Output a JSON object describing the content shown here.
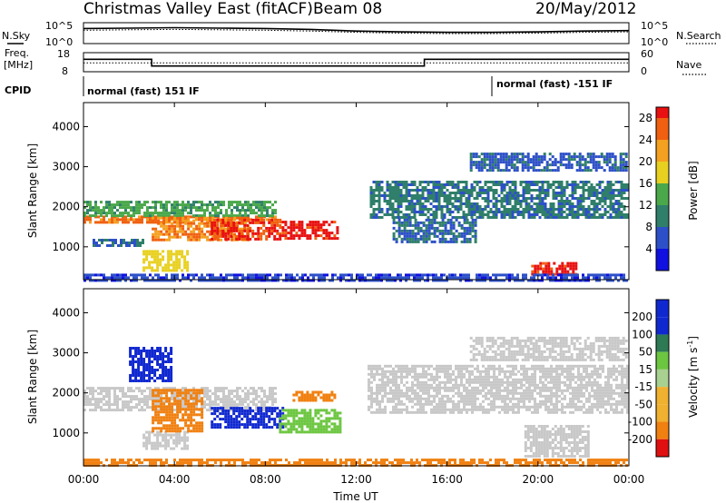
{
  "header": {
    "title": "Christmas Valley East (fitACF)",
    "beam": "Beam 08",
    "date": "20/May/2012"
  },
  "summary_labels": {
    "nsky": "N.Sky",
    "nsearch": "N.Search",
    "freq_line1": "Freq.",
    "freq_line2": "[MHz]",
    "nave": "Nave",
    "cpid": "CPID",
    "noise_ticks_left": [
      "10^5",
      "10^0"
    ],
    "noise_ticks_right": [
      "10^5",
      "10^0"
    ],
    "freq_ticks": [
      "18",
      "8"
    ],
    "nave_ticks": [
      "60",
      "0"
    ]
  },
  "cpid_segments": [
    {
      "label": "normal (fast) 151 IF",
      "start_hour": 0,
      "end_hour": 18
    },
    {
      "label": "normal (fast) -151 IF",
      "start_hour": 18,
      "end_hour": 24
    }
  ],
  "chart_data": [
    {
      "type": "line",
      "name": "summary-noise",
      "xlim": [
        0,
        24
      ],
      "series": [
        {
          "name": "N.Sky",
          "x": [
            0,
            2,
            4,
            6,
            8,
            10,
            12,
            14,
            16,
            18,
            20,
            22,
            24
          ],
          "y": [
            3.6,
            3.7,
            3.8,
            3.7,
            3.6,
            3.4,
            3.0,
            2.8,
            2.7,
            2.7,
            2.8,
            3.0,
            3.1
          ]
        },
        {
          "name": "N.Search",
          "x": [
            0,
            2,
            4,
            6,
            8,
            10,
            12,
            14,
            16,
            18,
            20,
            22,
            24
          ],
          "y": [
            3.2,
            3.3,
            3.4,
            3.3,
            3.2,
            3.0,
            2.7,
            2.5,
            2.4,
            2.4,
            2.5,
            2.7,
            2.8
          ]
        }
      ]
    },
    {
      "type": "line",
      "name": "summary-frequency",
      "xlim": [
        0,
        24
      ],
      "series": [
        {
          "name": "Freq.",
          "x": [
            0,
            3,
            3,
            15,
            15,
            24
          ],
          "y": [
            14.5,
            14.5,
            11.0,
            11.0,
            14.5,
            14.5
          ]
        },
        {
          "name": "Nave",
          "x": [
            0,
            3,
            15,
            24
          ],
          "y": [
            28,
            28,
            28,
            28
          ]
        }
      ]
    },
    {
      "type": "heatmap",
      "name": "power",
      "xlabel": "Time UT",
      "ylabel": "Slant Range [km]",
      "x_ticks": [
        "00:00",
        "04:00",
        "08:00",
        "12:00",
        "16:00",
        "20:00",
        "00:00"
      ],
      "y_ticks": [
        1000,
        2000,
        3000,
        4000
      ],
      "xlim": [
        0,
        24
      ],
      "ylim": [
        180,
        4600
      ],
      "colorbar": {
        "label": "Power [dB]",
        "ticks": [
          4,
          8,
          12,
          16,
          20,
          24,
          28
        ],
        "range": [
          0,
          30
        ]
      },
      "features": [
        {
          "t0": 0.0,
          "t1": 8.4,
          "r0": 1600,
          "r1": 1780,
          "value": 25
        },
        {
          "t0": 0.0,
          "t1": 8.4,
          "r0": 1780,
          "r1": 2150,
          "value": 13
        },
        {
          "t0": 0.4,
          "t1": 2.6,
          "r0": 1020,
          "r1": 1200,
          "value": 8
        },
        {
          "t0": 2.6,
          "t1": 4.6,
          "r0": 380,
          "r1": 920,
          "value": 18
        },
        {
          "t0": 3.0,
          "t1": 7.2,
          "r0": 1200,
          "r1": 1750,
          "value": 24
        },
        {
          "t0": 5.6,
          "t1": 8.6,
          "r0": 1200,
          "r1": 1700,
          "value": 28
        },
        {
          "t0": 8.6,
          "t1": 11.2,
          "r0": 1200,
          "r1": 1650,
          "value": 29
        },
        {
          "t0": 12.6,
          "t1": 23.9,
          "r0": 1750,
          "r1": 2650,
          "value": 9
        },
        {
          "t0": 13.6,
          "t1": 17.2,
          "r0": 1100,
          "r1": 1700,
          "value": 8
        },
        {
          "t0": 17.0,
          "t1": 23.9,
          "r0": 2900,
          "r1": 3350,
          "value": 7
        },
        {
          "t0": 19.7,
          "t1": 21.7,
          "r0": 280,
          "r1": 620,
          "value": 29
        },
        {
          "t0": 0.0,
          "t1": 23.9,
          "r0": 180,
          "r1": 330,
          "value": 5
        }
      ]
    },
    {
      "type": "heatmap",
      "name": "velocity",
      "xlabel": "Time UT",
      "ylabel": "Slant Range [km]",
      "x_ticks": [
        "00:00",
        "04:00",
        "08:00",
        "12:00",
        "16:00",
        "20:00",
        "00:00"
      ],
      "y_ticks": [
        1000,
        2000,
        3000,
        4000
      ],
      "xlim": [
        0,
        24
      ],
      "ylim": [
        180,
        4600
      ],
      "colorbar": {
        "label": "Velocity [m s^-1]",
        "ticks": [
          200,
          100,
          50,
          15,
          -15,
          -50,
          -100,
          -200
        ],
        "range": [
          -250,
          250
        ]
      },
      "features": [
        {
          "t0": 0.0,
          "t1": 8.4,
          "r0": 1550,
          "r1": 2150,
          "value": 0
        },
        {
          "t0": 2.0,
          "t1": 3.8,
          "r0": 2300,
          "r1": 3150,
          "value": 200
        },
        {
          "t0": 2.6,
          "t1": 4.6,
          "r0": 600,
          "r1": 1050,
          "value": 0
        },
        {
          "t0": 3.0,
          "t1": 5.2,
          "r0": 1050,
          "r1": 2100,
          "value": -60
        },
        {
          "t0": 5.6,
          "t1": 8.8,
          "r0": 1150,
          "r1": 1650,
          "value": 200
        },
        {
          "t0": 8.6,
          "t1": 11.3,
          "r0": 1050,
          "r1": 1600,
          "value": 50
        },
        {
          "t0": 9.2,
          "t1": 11.0,
          "r0": 1800,
          "r1": 2050,
          "value": -60
        },
        {
          "t0": 12.5,
          "t1": 23.9,
          "r0": 1500,
          "r1": 2700,
          "value": 0
        },
        {
          "t0": 17.0,
          "t1": 23.9,
          "r0": 2800,
          "r1": 3400,
          "value": 0
        },
        {
          "t0": 19.4,
          "t1": 22.2,
          "r0": 450,
          "r1": 1200,
          "value": 0
        },
        {
          "t0": 0.0,
          "t1": 23.9,
          "r0": 180,
          "r1": 360,
          "value": -60
        }
      ]
    }
  ]
}
